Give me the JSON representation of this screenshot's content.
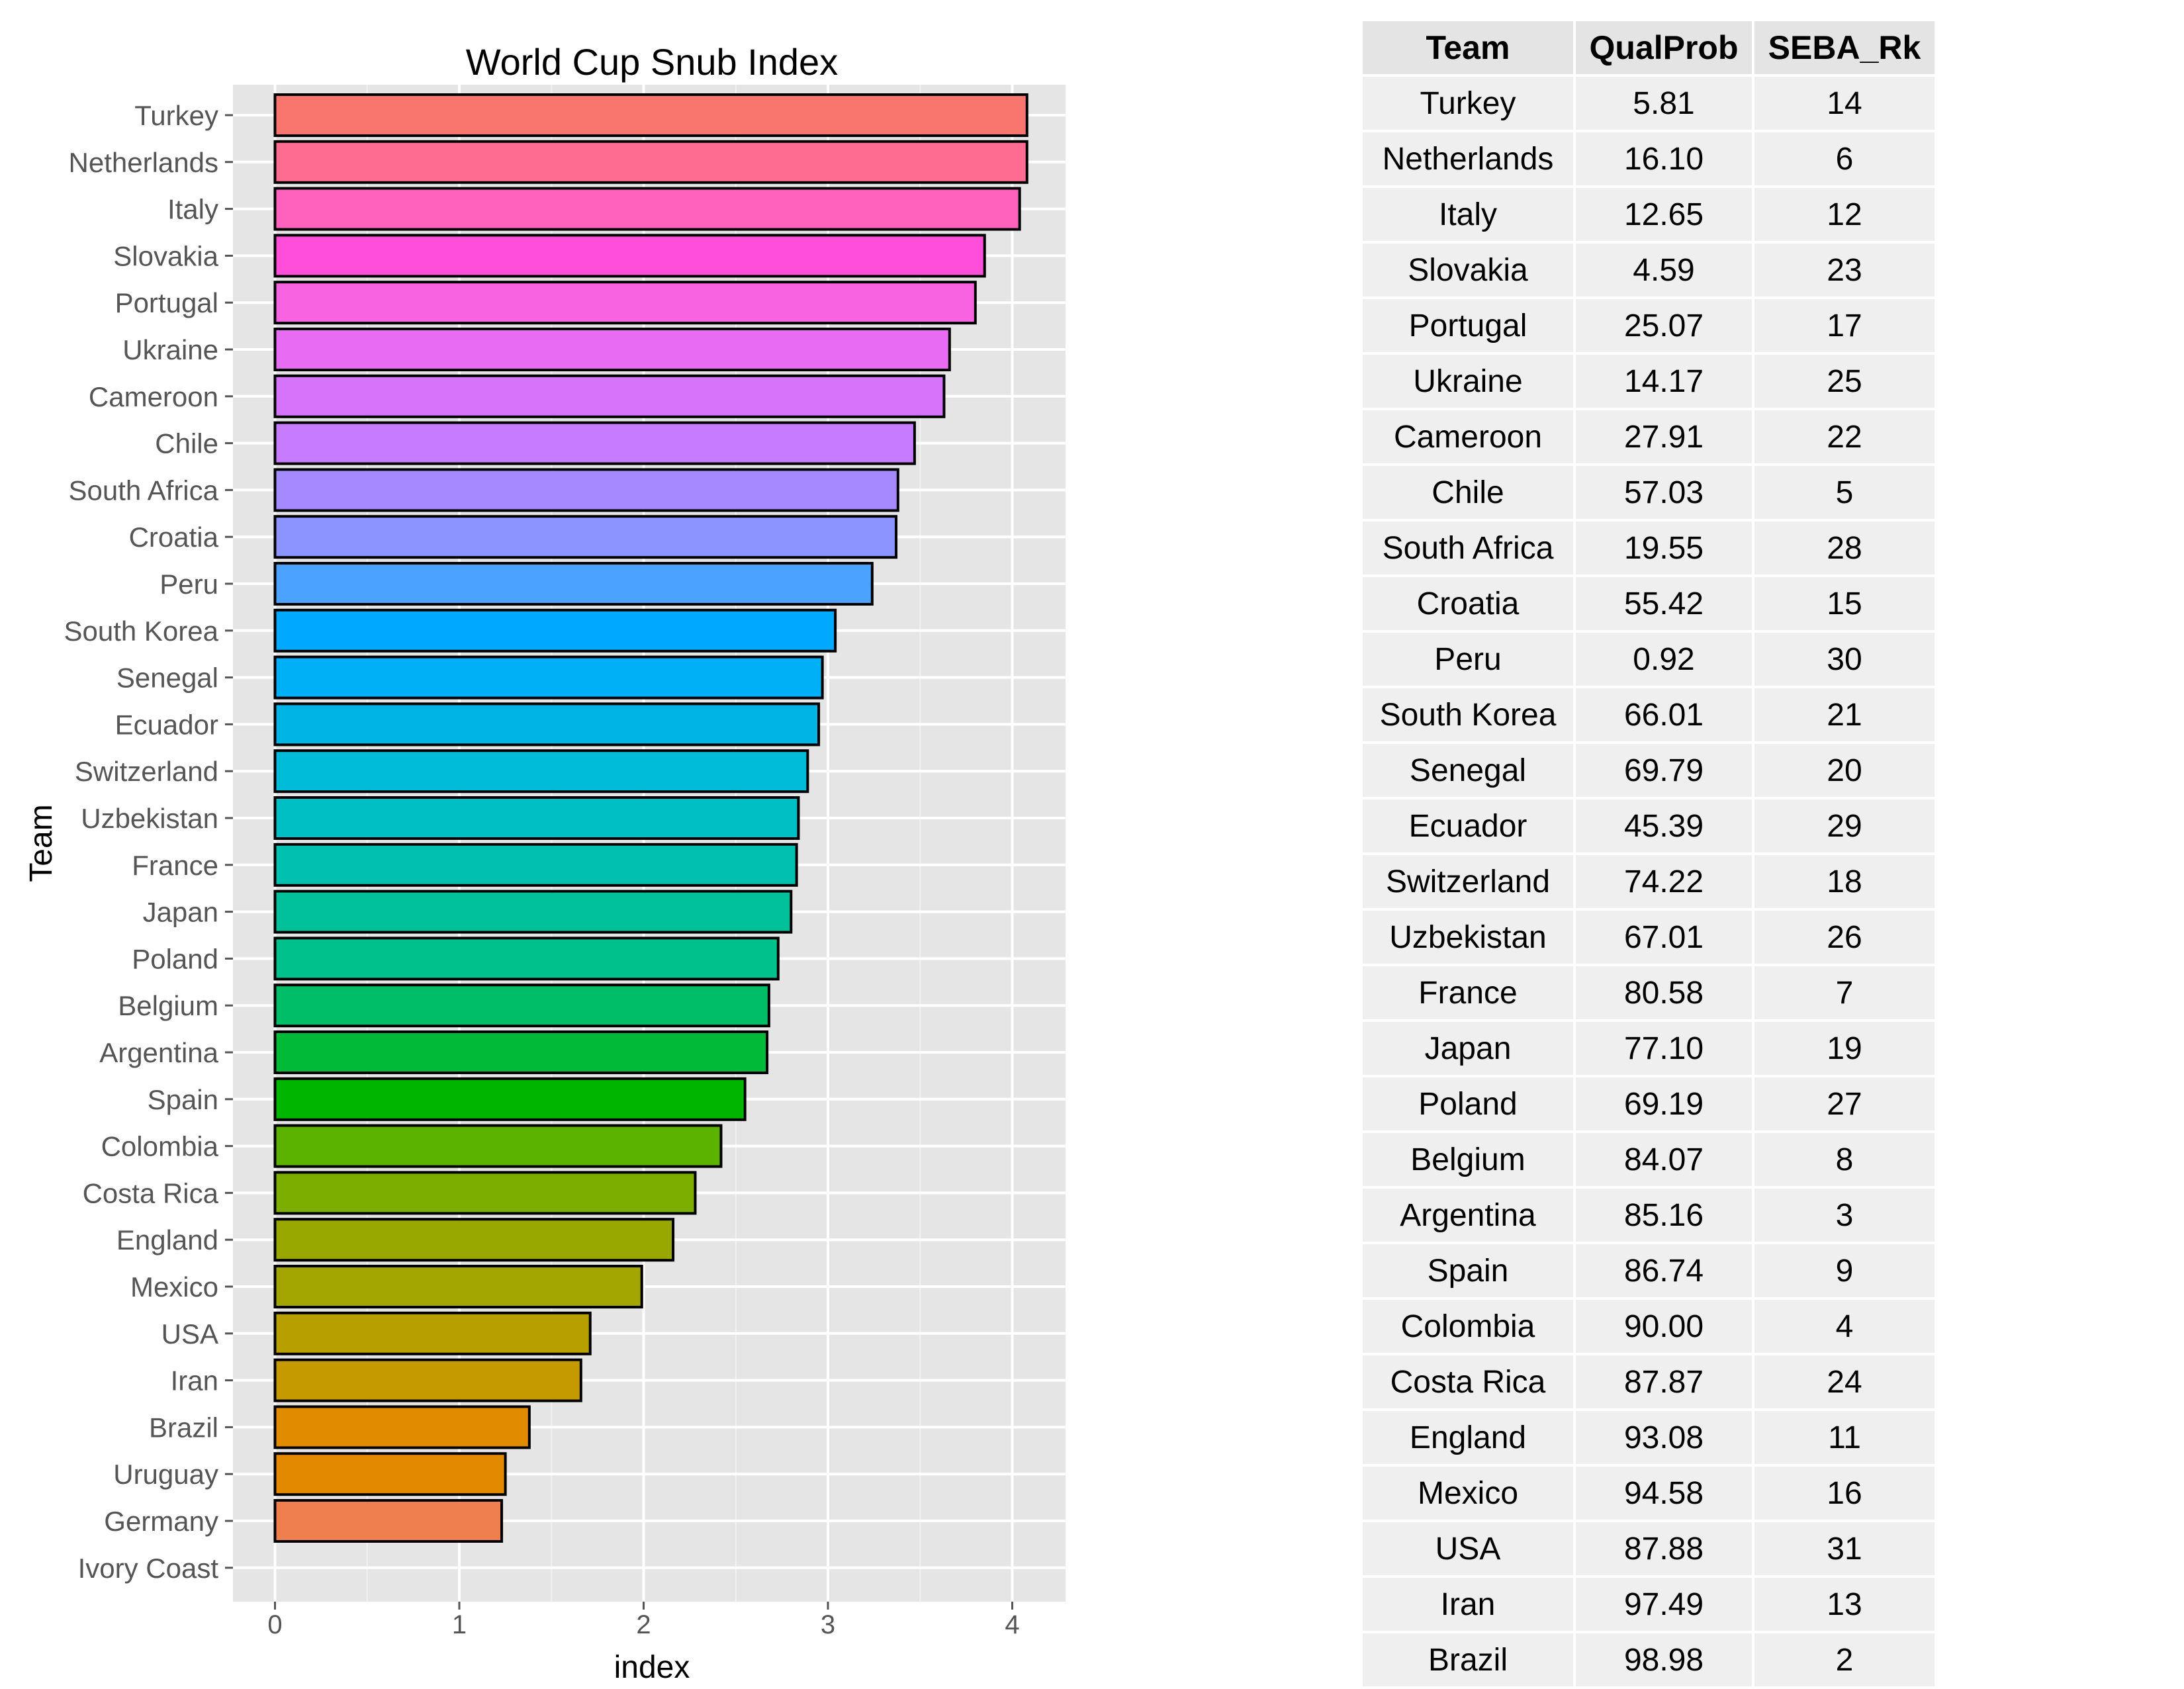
{
  "chart_data": {
    "type": "bar",
    "orientation": "horizontal",
    "title": "World Cup Snub Index",
    "xlabel": "index",
    "ylabel": "Team",
    "xlim": [
      0,
      4.3
    ],
    "xticks": [
      0,
      1,
      2,
      3,
      4
    ],
    "grid": true,
    "categories": [
      "Turkey",
      "Netherlands",
      "Italy",
      "Slovakia",
      "Portugal",
      "Ukraine",
      "Cameroon",
      "Chile",
      "South Africa",
      "Croatia",
      "Peru",
      "South Korea",
      "Senegal",
      "Ecuador",
      "Switzerland",
      "Uzbekistan",
      "France",
      "Japan",
      "Poland",
      "Belgium",
      "Argentina",
      "Spain",
      "Colombia",
      "Costa Rica",
      "England",
      "Mexico",
      "USA",
      "Iran",
      "Brazil",
      "Uruguay",
      "Germany",
      "Ivory Coast"
    ],
    "values": [
      4.08,
      4.08,
      4.04,
      3.85,
      3.8,
      3.66,
      3.63,
      3.47,
      3.38,
      3.37,
      3.24,
      3.04,
      2.97,
      2.95,
      2.89,
      2.84,
      2.83,
      2.8,
      2.73,
      2.68,
      2.67,
      2.55,
      2.42,
      2.28,
      2.16,
      1.99,
      1.71,
      1.66,
      1.38,
      1.25,
      1.23,
      0.0
    ],
    "colors": [
      "#F8766D",
      "#FF6C91",
      "#FF62BC",
      "#FF4FDA",
      "#F763E0",
      "#E76BF3",
      "#D772FA",
      "#C77CFF",
      "#A58AFF",
      "#8C95FF",
      "#4CA2FF",
      "#00A9FF",
      "#00B0F6",
      "#00B4E5",
      "#00BCD8",
      "#00BFC4",
      "#00C0AF",
      "#00C19A",
      "#00C08B",
      "#00BE67",
      "#00BA38",
      "#00B500",
      "#5BB300",
      "#7CAE00",
      "#99A800",
      "#A3A500",
      "#B79F00",
      "#C49A00",
      "#E08B00",
      "#E38900",
      "#F07F4F",
      "#F8766D"
    ]
  },
  "table": {
    "headers": [
      "Team",
      "QualProb",
      "SEBA_Rk"
    ],
    "rows": [
      [
        "Turkey",
        "5.81",
        "14"
      ],
      [
        "Netherlands",
        "16.10",
        "6"
      ],
      [
        "Italy",
        "12.65",
        "12"
      ],
      [
        "Slovakia",
        "4.59",
        "23"
      ],
      [
        "Portugal",
        "25.07",
        "17"
      ],
      [
        "Ukraine",
        "14.17",
        "25"
      ],
      [
        "Cameroon",
        "27.91",
        "22"
      ],
      [
        "Chile",
        "57.03",
        "5"
      ],
      [
        "South Africa",
        "19.55",
        "28"
      ],
      [
        "Croatia",
        "55.42",
        "15"
      ],
      [
        "Peru",
        "0.92",
        "30"
      ],
      [
        "South Korea",
        "66.01",
        "21"
      ],
      [
        "Senegal",
        "69.79",
        "20"
      ],
      [
        "Ecuador",
        "45.39",
        "29"
      ],
      [
        "Switzerland",
        "74.22",
        "18"
      ],
      [
        "Uzbekistan",
        "67.01",
        "26"
      ],
      [
        "France",
        "80.58",
        "7"
      ],
      [
        "Japan",
        "77.10",
        "19"
      ],
      [
        "Poland",
        "69.19",
        "27"
      ],
      [
        "Belgium",
        "84.07",
        "8"
      ],
      [
        "Argentina",
        "85.16",
        "3"
      ],
      [
        "Spain",
        "86.74",
        "9"
      ],
      [
        "Colombia",
        "90.00",
        "4"
      ],
      [
        "Costa Rica",
        "87.87",
        "24"
      ],
      [
        "England",
        "93.08",
        "11"
      ],
      [
        "Mexico",
        "94.58",
        "16"
      ],
      [
        "USA",
        "87.88",
        "31"
      ],
      [
        "Iran",
        "97.49",
        "13"
      ],
      [
        "Brazil",
        "98.98",
        "2"
      ]
    ]
  }
}
